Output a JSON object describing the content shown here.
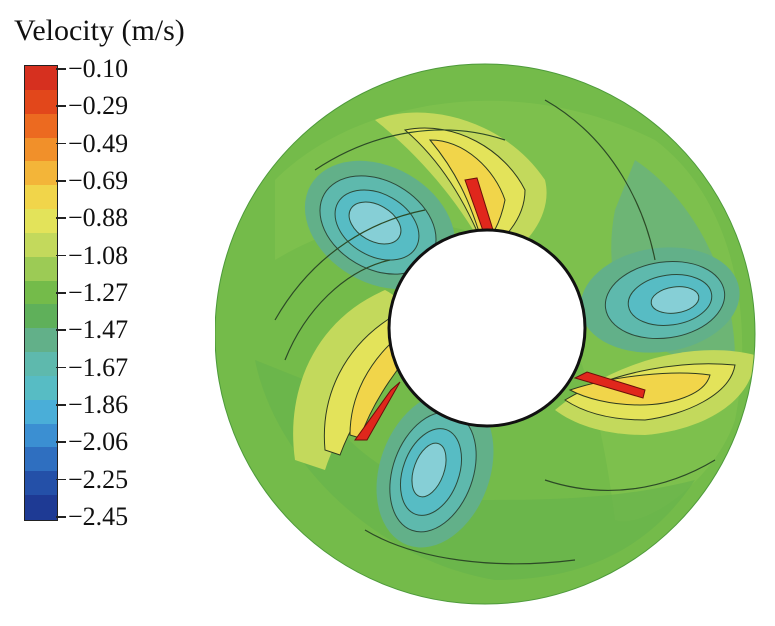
{
  "legend": {
    "title": "Velocity (m/s)",
    "ticks": [
      "−0.10",
      "−0.29",
      "−0.49",
      "−0.69",
      "−0.88",
      "−1.08",
      "−1.27",
      "−1.47",
      "−1.67",
      "−1.86",
      "−2.06",
      "−2.25",
      "−2.45"
    ],
    "colors": [
      "#d6301f",
      "#e2471b",
      "#ec6a20",
      "#f1902a",
      "#f3b539",
      "#f1d54a",
      "#e3e35a",
      "#c3d95c",
      "#9ccb55",
      "#74bb4a",
      "#5fb05a",
      "#62b089",
      "#5eb9ad",
      "#57bcc4",
      "#4aaed8",
      "#3b8fd2",
      "#2f6fc0",
      "#2450a8",
      "#1e3a94"
    ]
  },
  "plot": {
    "background_color": "#74bb4a",
    "vortex_color": "#5ab9b5",
    "vortex_core_color": "#86cfd6",
    "blade_color": "#e0271c"
  }
}
